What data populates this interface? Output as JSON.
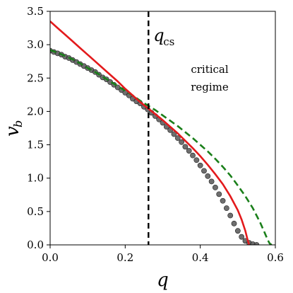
{
  "chart_data": {
    "type": "line",
    "xlabel": "q",
    "ylabel": "v_b",
    "xlim": [
      0.0,
      0.6
    ],
    "ylim": [
      0.0,
      3.5
    ],
    "xticks": [
      "0.0",
      "0.2",
      "0.4",
      "0.6"
    ],
    "yticks": [
      "0.0",
      "0.5",
      "1.0",
      "1.5",
      "2.0",
      "2.5",
      "3.0",
      "3.5"
    ],
    "xtick_values": [
      0.0,
      0.2,
      0.4,
      0.6
    ],
    "ytick_values": [
      0.0,
      0.5,
      1.0,
      1.5,
      2.0,
      2.5,
      3.0,
      3.5
    ],
    "grid": false,
    "vline": {
      "x": 0.262,
      "label_main": "q",
      "label_sub": "cs",
      "style": "dashed",
      "color": "#000000"
    },
    "annotation": {
      "lines": [
        "critical",
        "regime"
      ]
    },
    "series": [
      {
        "kind": "scatter",
        "color": "#555555",
        "x": [
          0.0,
          0.01,
          0.02,
          0.03,
          0.04,
          0.05,
          0.06,
          0.07,
          0.08,
          0.09,
          0.1,
          0.11,
          0.12,
          0.13,
          0.14,
          0.15,
          0.16,
          0.17,
          0.18,
          0.19,
          0.2,
          0.21,
          0.22,
          0.23,
          0.24,
          0.25,
          0.26,
          0.27,
          0.28,
          0.29,
          0.3,
          0.31,
          0.32,
          0.33,
          0.34,
          0.35,
          0.36,
          0.37,
          0.38,
          0.39,
          0.4,
          0.41,
          0.42,
          0.43,
          0.44,
          0.45,
          0.46,
          0.47,
          0.48,
          0.49,
          0.5,
          0.51,
          0.52,
          0.53,
          0.54,
          0.55
        ],
        "y": [
          2.91,
          2.89,
          2.87,
          2.85,
          2.82,
          2.8,
          2.77,
          2.74,
          2.71,
          2.68,
          2.65,
          2.62,
          2.59,
          2.55,
          2.51,
          2.48,
          2.44,
          2.4,
          2.36,
          2.32,
          2.28,
          2.24,
          2.19,
          2.15,
          2.12,
          2.07,
          2.03,
          1.98,
          1.93,
          1.88,
          1.83,
          1.77,
          1.72,
          1.66,
          1.6,
          1.54,
          1.47,
          1.41,
          1.34,
          1.27,
          1.19,
          1.11,
          1.03,
          0.95,
          0.86,
          0.76,
          0.66,
          0.55,
          0.44,
          0.32,
          0.21,
          0.12,
          0.06,
          0.03,
          0.01,
          0.0
        ]
      },
      {
        "kind": "line",
        "style": "dashed",
        "color": "#1a7f1a",
        "x": [
          0.0,
          0.02,
          0.04,
          0.06,
          0.08,
          0.1,
          0.12,
          0.14,
          0.16,
          0.18,
          0.2,
          0.22,
          0.24,
          0.26,
          0.28,
          0.3,
          0.32,
          0.34,
          0.36,
          0.38,
          0.4,
          0.42,
          0.44,
          0.46,
          0.48,
          0.5,
          0.52,
          0.54,
          0.56,
          0.57,
          0.58,
          0.585,
          0.59
        ],
        "y": [
          2.92,
          2.88,
          2.83,
          2.78,
          2.72,
          2.65,
          2.59,
          2.52,
          2.45,
          2.38,
          2.31,
          2.24,
          2.16,
          2.09,
          2.02,
          1.94,
          1.86,
          1.78,
          1.69,
          1.6,
          1.5,
          1.4,
          1.29,
          1.17,
          1.04,
          0.89,
          0.73,
          0.55,
          0.33,
          0.2,
          0.07,
          0.02,
          0.0
        ]
      },
      {
        "kind": "line",
        "style": "solid",
        "color": "#e31a1c",
        "x": [
          0.0,
          0.02,
          0.04,
          0.06,
          0.08,
          0.1,
          0.12,
          0.14,
          0.16,
          0.18,
          0.2,
          0.22,
          0.24,
          0.26,
          0.28,
          0.3,
          0.32,
          0.34,
          0.36,
          0.38,
          0.4,
          0.42,
          0.44,
          0.46,
          0.48,
          0.5,
          0.51,
          0.52,
          0.525,
          0.53
        ],
        "y": [
          3.35,
          3.25,
          3.15,
          3.05,
          2.95,
          2.85,
          2.75,
          2.65,
          2.55,
          2.45,
          2.34,
          2.24,
          2.14,
          2.05,
          1.96,
          1.87,
          1.77,
          1.67,
          1.56,
          1.45,
          1.33,
          1.2,
          1.06,
          0.91,
          0.73,
          0.52,
          0.38,
          0.21,
          0.1,
          0.0
        ]
      }
    ]
  }
}
